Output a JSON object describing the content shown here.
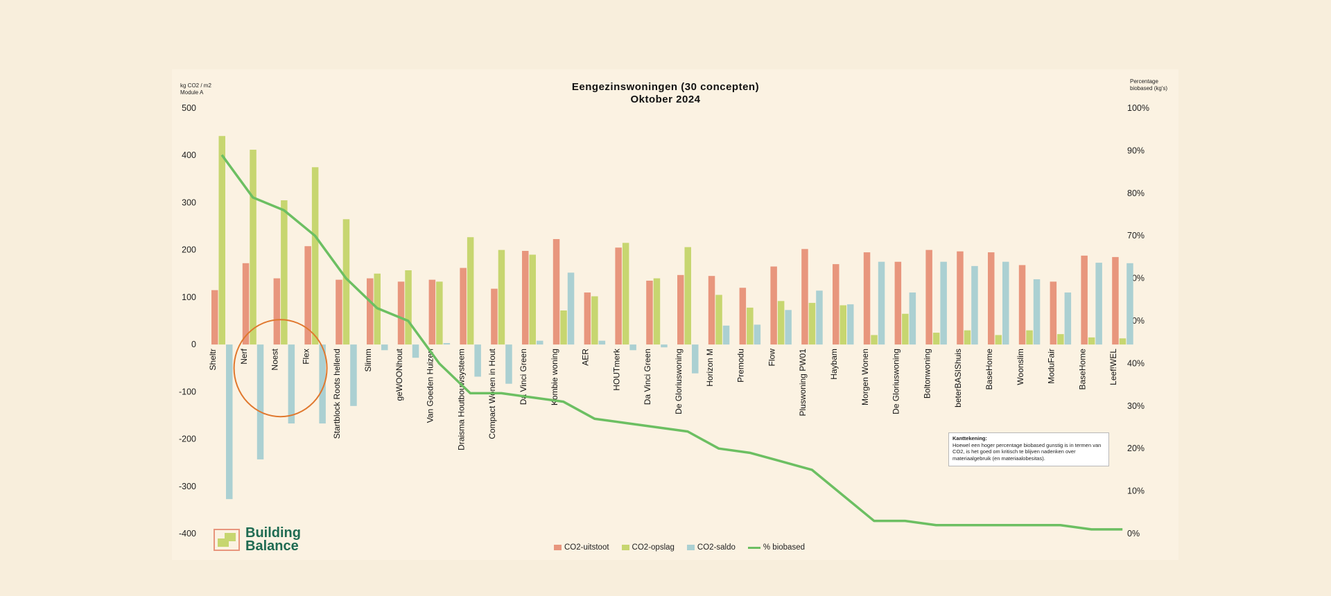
{
  "header": {
    "title": "Eengezinswoningen (30 concepten)",
    "subtitle": "Oktober 2024",
    "left_axis_label_line1": "kg CO2 / m2",
    "left_axis_label_line2": "Module A",
    "right_axis_label_line1": "Percentage",
    "right_axis_label_line2": "biobased (kg's)"
  },
  "note": {
    "title": "Kanttekening:",
    "text": "Hoewel een hoger percentage biobased gunstig is in termen van CO2, is het goed om kritisch te blijven nadenken over materiaalgebruik (en materiaalobesitas)."
  },
  "logo": {
    "line1": "Building",
    "line2": "Balance"
  },
  "colors": {
    "uitstoot": "#e8967d",
    "opslag": "#c7d670",
    "saldo": "#abd0d2",
    "biobased": "#6cbf62",
    "highlight": "#e0782e"
  },
  "chart_data": {
    "type": "bar",
    "title": "Eengezinswoningen (30 concepten)",
    "subtitle": "Oktober 2024",
    "ylabel": "kg CO2 / m2 Module A",
    "y2label": "Percentage biobased (kg's)",
    "ylim": [
      -400,
      500
    ],
    "y2lim": [
      0,
      100
    ],
    "yticks": [
      "500",
      "400",
      "300",
      "200",
      "100",
      "0",
      "-100",
      "-200",
      "-300",
      "-400"
    ],
    "y2ticks": [
      "100%",
      "90%",
      "80%",
      "70%",
      "60%",
      "50%",
      "40%",
      "30%",
      "20%",
      "10%",
      "0%"
    ],
    "categories": [
      "Sheltr",
      "Nerf",
      "Noest",
      "Flex",
      "Startblock Roots hellend",
      "Slimm",
      "geWOONhout",
      "Van Goeden Huizen",
      "Draisma Houtbouwsysteem",
      "Compact Wonen in Hout",
      "Da Vinci Green",
      "Kombie woning",
      "AER",
      "HOUTmerk",
      "Da Vinci Green",
      "De Gloriuswoning",
      "Horizon M",
      "Premodu",
      "Flow",
      "Pluswoning PW01",
      "Haybam",
      "Morgen Wonen",
      "De Gloriuswoning",
      "Boltonwoning",
      "beterBASIShuis",
      "BaseHome",
      "Woonslim",
      "ModuFair",
      "BaseHome",
      "Leef!WEL"
    ],
    "series": [
      {
        "name": "CO2-uitstoot",
        "values": [
          115,
          172,
          140,
          208,
          137,
          140,
          133,
          137,
          162,
          118,
          198,
          223,
          110,
          205,
          135,
          147,
          145,
          120,
          165,
          202,
          170,
          195,
          175,
          200,
          197,
          195,
          168,
          133,
          188,
          185
        ]
      },
      {
        "name": "CO2-opslag",
        "values": [
          441,
          412,
          305,
          375,
          265,
          150,
          157,
          133,
          227,
          200,
          190,
          72,
          102,
          215,
          140,
          206,
          105,
          78,
          92,
          88,
          83,
          20,
          65,
          25,
          30,
          20,
          30,
          22,
          15,
          13
        ]
      },
      {
        "name": "CO2-saldo",
        "values": [
          -327,
          -243,
          -167,
          -167,
          -130,
          -12,
          -28,
          3,
          -68,
          -83,
          8,
          152,
          8,
          -12,
          -6,
          -61,
          40,
          42,
          73,
          114,
          85,
          175,
          110,
          175,
          166,
          175,
          138,
          110,
          173,
          172
        ]
      },
      {
        "name": "% biobased",
        "axis": "right",
        "values": [
          89,
          79,
          76,
          70,
          60,
          53,
          50,
          40,
          33,
          33,
          32,
          31,
          27,
          26,
          25,
          24,
          20,
          19,
          17,
          15,
          9,
          3,
          3,
          2,
          2,
          2,
          2,
          2,
          1,
          1
        ]
      }
    ],
    "highlight": {
      "shape": "ellipse",
      "around": [
        "Nerf",
        "Noest",
        "Flex"
      ]
    },
    "legend": [
      "CO2-uitstoot",
      "CO2-opslag",
      "CO2-saldo",
      "% biobased"
    ],
    "legend_position": "bottom",
    "grid": false
  }
}
